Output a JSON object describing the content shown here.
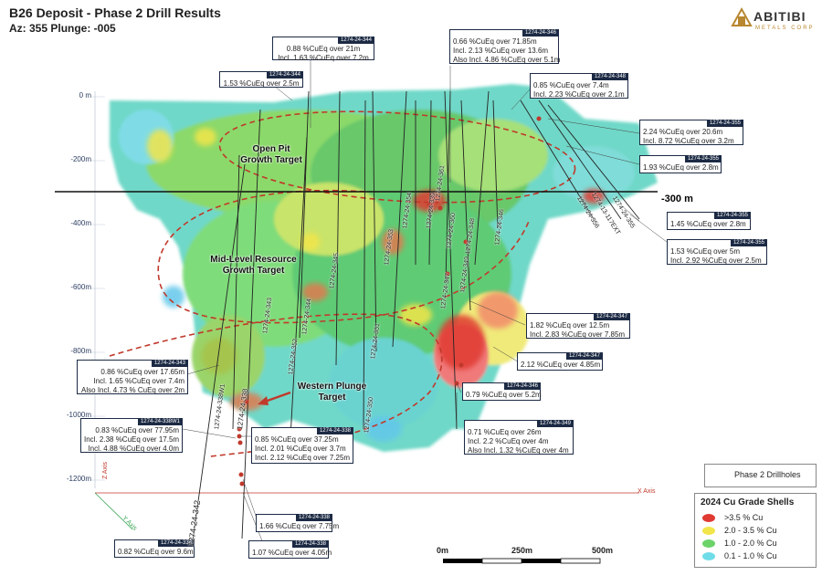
{
  "header": {
    "title": "B26 Deposit - Phase 2 Drill Results",
    "subtitle": "Az: 355 Plunge: -005"
  },
  "logo": {
    "wordmark": "ABITIBI",
    "tagline": "METALS CORP"
  },
  "depth_axis": [
    "0 m",
    "-200m",
    "-400m",
    "-600m",
    "-800m",
    "-1000m",
    "-1200m"
  ],
  "axis_names": {
    "z": "Z Axis",
    "y": "Y Axis",
    "x": "X Axis"
  },
  "level_marker": "-300 m",
  "targets": {
    "open_pit": [
      "Open Pit",
      "Growth Target"
    ],
    "mid_level": [
      "Mid-Level Resource",
      "Growth Target"
    ],
    "western": [
      "Western Plunge",
      "Target"
    ]
  },
  "callouts": [
    {
      "hole": "1274-24-344",
      "lines": [
        "0.88 %CuEq over 21m",
        "Incl. 1.63 %CuEq over 7.2m"
      ]
    },
    {
      "hole": "1274-24-344",
      "lines": [
        "1.53 %CuEq over 2.5m"
      ]
    },
    {
      "hole": "1274-24-346",
      "lines": [
        "0.66 %CuEq over 71.85m",
        "Incl. 2.13 %CuEq over 13.6m",
        "Also Incl. 4.86 %CuEq over 5.1m"
      ]
    },
    {
      "hole": "1274-24-348",
      "lines": [
        "0.85 %CuEq over 7.4m",
        "Incl. 2.23 %CuEq over 2.1m"
      ]
    },
    {
      "hole": "1274-24-355",
      "lines": [
        "2.24 %CuEq over 20.6m",
        "Incl. 8.72 %CuEq over 3.2m"
      ]
    },
    {
      "hole": "1274-24-355",
      "lines": [
        "1.93 %CuEq over 2.8m"
      ]
    },
    {
      "hole": "1274-24-355",
      "lines": [
        "1.45 %CuEq over 2.8m"
      ]
    },
    {
      "hole": "1274-24-355",
      "lines": [
        "1.53 %CuEq over 5m",
        "Incl. 2.92 %CuEq over 2.5m"
      ]
    },
    {
      "hole": "1274-24-347",
      "lines": [
        "1.82 %CuEq over 12.5m",
        "Incl. 2.83 %CuEq over 7.85m"
      ]
    },
    {
      "hole": "1274-24-347",
      "lines": [
        "2.12 %CuEq over 4.85m"
      ]
    },
    {
      "hole": "1274-24-346",
      "lines": [
        "0.79 %CuEq over 5.2m"
      ]
    },
    {
      "hole": "1274-24-349",
      "lines": [
        "0.71 %CuEq over 26m",
        "Incl. 2.2 %CuEq over 4m",
        "Also Incl. 1.32 %CuEq over 4m"
      ]
    },
    {
      "hole": "1274-24-343",
      "lines": [
        "0.86 %CuEq over 17.65m",
        "Incl. 1.65 %CuEq over 7.4m",
        "Also Incl. 4.73 % CuEq over 2m"
      ]
    },
    {
      "hole": "1274-24-338W1",
      "lines": [
        "0.83 %CuEq over 77.95m",
        "Incl. 2.38 %CuEq over 17.5m",
        "Incl. 4.88 %CuEq over 4.0m"
      ]
    },
    {
      "hole": "1274-24-338",
      "lines": [
        "0.85 %CuEq over 37.25m",
        "Incl. 2.01 %CuEq over 3.7m",
        "Incl. 2.12 %CuEq over 7.25m"
      ]
    },
    {
      "hole": "1274-24-338",
      "lines": [
        "1.66 %CuEq over 7.75m"
      ]
    },
    {
      "hole": "1274-24-338",
      "lines": [
        "0.82 %CuEq over 9.6m"
      ]
    },
    {
      "hole": "1274-24-338",
      "lines": [
        "1.07 %CuEq over 4.05m"
      ]
    }
  ],
  "drillhole_labels": [
    "1274-24-342",
    "1274-24-338",
    "1274-24-338W1",
    "1274-24-343",
    "1274-24-350",
    "1274-24-352",
    "1274-24-344",
    "1274-24-351",
    "1274-24-347",
    "1274-24-349",
    "1274-24-348",
    "1274-24-346",
    "1274-24-356",
    "1274-13-117EXT",
    "1274-24-355",
    "1274-24-353",
    "1274-24-345",
    "1274-24-354",
    "1274-24-360",
    "1274-24-339",
    "1274-24-361"
  ],
  "legend_drillholes": "Phase 2 Drillholes",
  "legend": {
    "title": "2024 Cu Grade Shells",
    "items": [
      {
        "label": ">3.5 % Cu",
        "color": "#e03a32"
      },
      {
        "label": "2.0 - 3.5 % Cu",
        "color": "#f2e54a"
      },
      {
        "label": "1.0 - 2.0 % Cu",
        "color": "#6bd36a"
      },
      {
        "label": "0.1 - 1.0 % Cu",
        "color": "#6fdde8"
      }
    ]
  },
  "scale_bar": [
    "0m",
    "250m",
    "500m"
  ],
  "colors": {
    "callout_tag": "#1c2a44",
    "target_ring": "#c0392b",
    "axis_tick": "#2c3e62"
  }
}
